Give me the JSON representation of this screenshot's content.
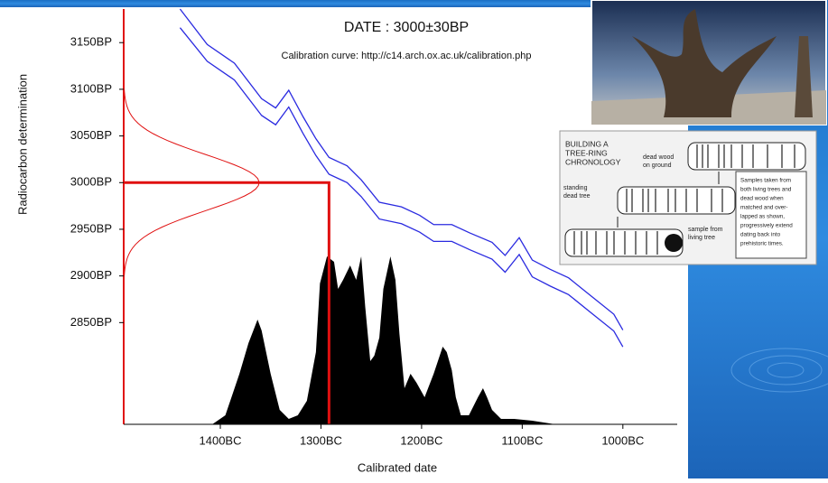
{
  "chart_data": {
    "type": "line",
    "title": "DATE : 3000±30BP",
    "subtitle": "Calibration curve: http://c14.arch.ox.ac.uk/calibration.php",
    "xlabel": "Calibrated date",
    "ylabel": "Radiocarbon determination",
    "xlim": [
      -1496,
      -946
    ],
    "ylim": [
      2741,
      3186
    ],
    "xticks": [
      {
        "value": -1400,
        "label": "1400BC"
      },
      {
        "value": -1300,
        "label": "1300BC"
      },
      {
        "value": -1200,
        "label": "1200BC"
      },
      {
        "value": -1100,
        "label": "1100BC"
      },
      {
        "value": -1000,
        "label": "1000BC"
      }
    ],
    "yticks": [
      {
        "value": 2850,
        "label": "2850BP"
      },
      {
        "value": 2900,
        "label": "2900BP"
      },
      {
        "value": 2950,
        "label": "2950BP"
      },
      {
        "value": 3000,
        "label": "3000BP"
      },
      {
        "value": 3050,
        "label": "3050BP"
      },
      {
        "value": 3100,
        "label": "3100BP"
      },
      {
        "value": 3150,
        "label": "3150BP"
      }
    ],
    "x": [
      -1440,
      -1413,
      -1386,
      -1359,
      -1345,
      -1332,
      -1318,
      -1305,
      -1292,
      -1274,
      -1260,
      -1242,
      -1220,
      -1202,
      -1188,
      -1170,
      -1152,
      -1130,
      -1117,
      -1103,
      -1090,
      -1072,
      -1054,
      -1031,
      -1009,
      -1000
    ],
    "series": [
      {
        "color": "#2a2ae0",
        "values": [
          3186,
          3148,
          3128,
          3090,
          3080,
          3099,
          3071,
          3047,
          3027,
          3018,
          3003,
          2979,
          2974,
          2965,
          2955,
          2955,
          2946,
          2936,
          2922,
          2941,
          2917,
          2907,
          2898,
          2878,
          2859,
          2842
        ]
      },
      {
        "color": "#2a2ae0",
        "values": [
          3166,
          3130,
          3110,
          3072,
          3062,
          3081,
          3053,
          3029,
          3009,
          3000,
          2985,
          2961,
          2956,
          2947,
          2937,
          2937,
          2928,
          2918,
          2904,
          2923,
          2899,
          2889,
          2880,
          2860,
          2841,
          2824
        ]
      }
    ],
    "histogram": {
      "color": "#000000",
      "x": [
        -1408,
        -1395,
        -1381,
        -1372,
        -1363,
        -1359,
        -1350,
        -1341,
        -1332,
        -1323,
        -1314,
        -1305,
        -1301,
        -1294,
        -1287,
        -1283,
        -1278,
        -1271,
        -1265,
        -1260,
        -1256,
        -1251,
        -1247,
        -1242,
        -1238,
        -1231,
        -1226,
        -1222,
        -1217,
        -1211,
        -1205,
        -1197,
        -1188,
        -1179,
        -1175,
        -1170,
        -1166,
        -1161,
        -1153,
        -1144,
        -1139,
        -1135,
        -1130,
        -1121,
        -1108,
        -1090,
        -1067
      ],
      "values": [
        0,
        5,
        28,
        45,
        58,
        52,
        28,
        8,
        3,
        5,
        13,
        40,
        78,
        93,
        90,
        75,
        80,
        88,
        80,
        93,
        65,
        35,
        38,
        48,
        75,
        93,
        80,
        50,
        20,
        28,
        23,
        15,
        28,
        43,
        40,
        30,
        15,
        5,
        5,
        15,
        20,
        15,
        8,
        3,
        3,
        2,
        0
      ]
    },
    "measurement": {
      "mean": 3000,
      "sigma": 30,
      "color": "#e01010"
    },
    "intercept_x": -1292
  },
  "inset_diagram": {
    "title": [
      "BUILDING A",
      "TREE-RING",
      "CHRONOLOGY"
    ],
    "dead_wood": [
      "dead wood",
      "on ground"
    ],
    "standing": [
      "standing",
      "dead tree"
    ],
    "living": [
      "sample from",
      "living tree"
    ],
    "note": [
      "Samples taken from",
      "both living trees and",
      "dead wood when",
      "matched and over-",
      "lapped as shown,",
      "progressively extend",
      "dating back into",
      "prehistoric times."
    ]
  }
}
